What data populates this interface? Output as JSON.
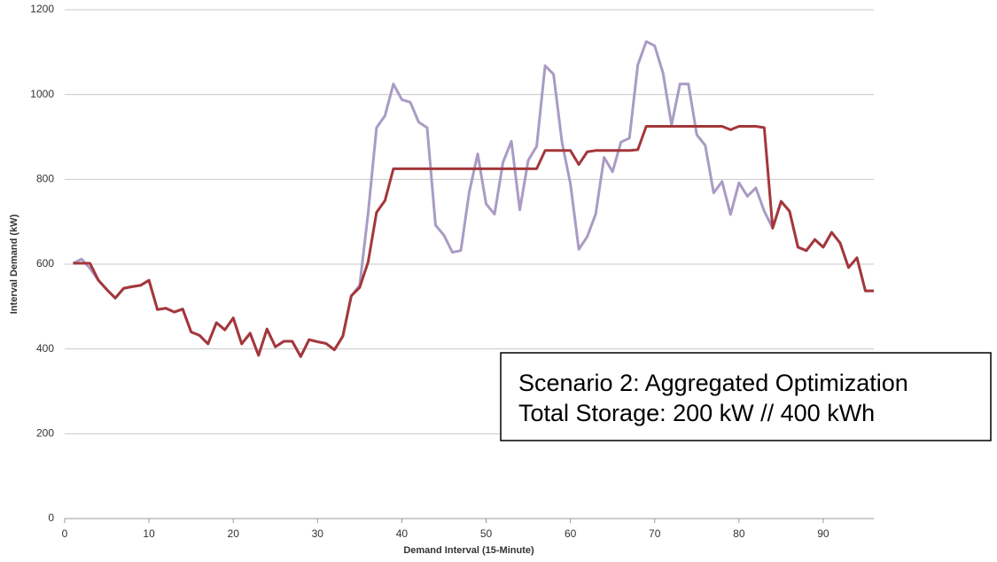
{
  "chart_data": {
    "type": "line",
    "xlabel": "Demand Interval (15-Minute)",
    "ylabel": "Interval Demand (kW)",
    "annotation": [
      "Scenario 2: Aggregated Optimization",
      "Total Storage: 200 kW // 400 kWh"
    ],
    "x": [
      1,
      2,
      3,
      4,
      5,
      6,
      7,
      8,
      9,
      10,
      11,
      12,
      13,
      14,
      15,
      16,
      17,
      18,
      19,
      20,
      21,
      22,
      23,
      24,
      25,
      26,
      27,
      28,
      29,
      30,
      31,
      32,
      33,
      34,
      35,
      36,
      37,
      38,
      39,
      40,
      41,
      42,
      43,
      44,
      45,
      46,
      47,
      48,
      49,
      50,
      51,
      52,
      53,
      54,
      55,
      56,
      57,
      58,
      59,
      60,
      61,
      62,
      63,
      64,
      65,
      66,
      67,
      68,
      69,
      70,
      71,
      72,
      73,
      74,
      75,
      76,
      77,
      78,
      79,
      80,
      81,
      82,
      83,
      84,
      85,
      86,
      87,
      88,
      89,
      90,
      91,
      92,
      93,
      94,
      95,
      96
    ],
    "series": [
      {
        "color": "#a99bc5",
        "values": [
          602,
          612,
          590,
          562,
          540,
          520,
          543,
          547,
          550,
          562,
          493,
          496,
          487,
          494,
          440,
          432,
          412,
          462,
          445,
          473,
          412,
          437,
          385,
          447,
          405,
          418,
          418,
          382,
          422,
          417,
          413,
          398,
          430,
          525,
          550,
          720,
          922,
          950,
          1025,
          988,
          982,
          935,
          922,
          692,
          668,
          628,
          632,
          770,
          860,
          742,
          718,
          840,
          890,
          728,
          845,
          878,
          1068,
          1048,
          888,
          790,
          635,
          665,
          718,
          852,
          818,
          888,
          897,
          1070,
          1125,
          1115,
          1050,
          928,
          1025,
          1025,
          905,
          880,
          768,
          795,
          717,
          792,
          760,
          780,
          725,
          685,
          748,
          725,
          640,
          632,
          658,
          640,
          675,
          650,
          592,
          615,
          537,
          537
        ]
      },
      {
        "color": "#a4373a",
        "values": [
          602,
          602,
          602,
          562,
          540,
          520,
          543,
          547,
          550,
          562,
          493,
          496,
          487,
          494,
          440,
          432,
          412,
          462,
          445,
          473,
          412,
          437,
          385,
          447,
          405,
          418,
          418,
          382,
          422,
          417,
          413,
          398,
          430,
          525,
          545,
          605,
          722,
          750,
          825,
          825,
          825,
          825,
          825,
          825,
          825,
          825,
          825,
          825,
          825,
          825,
          825,
          825,
          825,
          825,
          825,
          825,
          868,
          868,
          868,
          868,
          835,
          865,
          868,
          868,
          868,
          868,
          868,
          870,
          925,
          925,
          925,
          925,
          925,
          925,
          925,
          925,
          925,
          925,
          917,
          925,
          925,
          925,
          922,
          685,
          748,
          725,
          640,
          632,
          658,
          640,
          675,
          650,
          592,
          615,
          537,
          537
        ]
      }
    ],
    "xlim": [
      0,
      96
    ],
    "xticks": [
      0,
      10,
      20,
      30,
      40,
      50,
      60,
      70,
      80,
      90
    ],
    "ylim": [
      0,
      1200
    ],
    "yticks": [
      0,
      200,
      400,
      600,
      800,
      1000,
      1200
    ],
    "grid": true
  }
}
